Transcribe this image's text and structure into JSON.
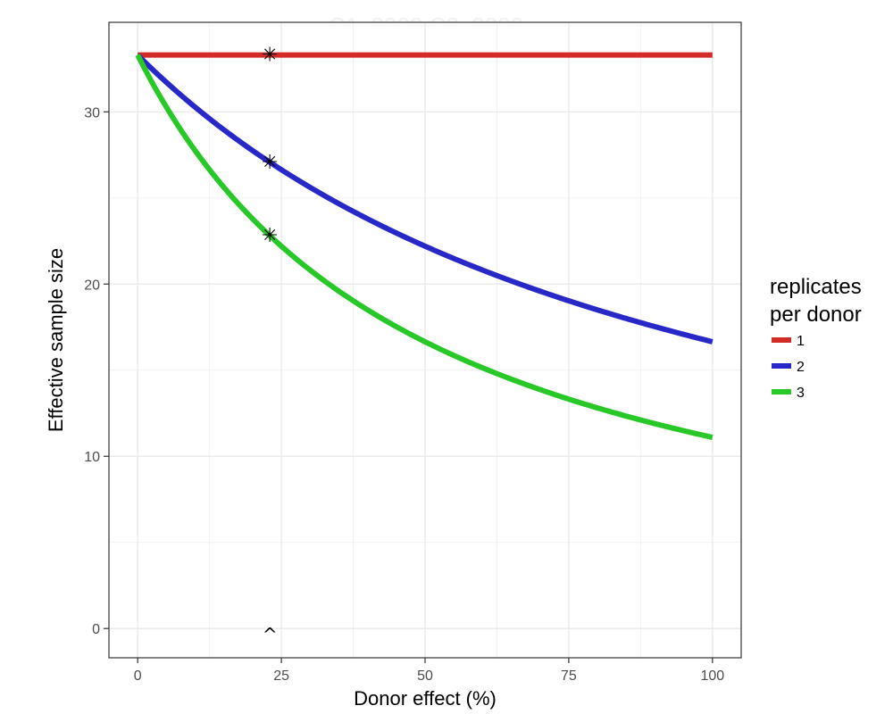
{
  "chart_data": {
    "type": "line",
    "title": "C1: 3000  C2: 3000",
    "title_color": "#f2f2f2",
    "xlabel": "Donor effect (%)",
    "ylabel": "Effective sample size",
    "xlim": [
      -5,
      105
    ],
    "ylim": [
      -1.7,
      35.2
    ],
    "x_ticks": [
      0,
      25,
      50,
      75,
      100
    ],
    "x_tick_labels": [
      "0",
      "25",
      "50",
      "75",
      "100"
    ],
    "y_ticks": [
      0,
      10,
      20,
      30
    ],
    "y_tick_labels": [
      "0",
      "10",
      "20",
      "30"
    ],
    "grid": true,
    "legend": {
      "title_lines": [
        "replicates",
        "per donor"
      ],
      "placement": "right"
    },
    "model": {
      "n_samples": 33.3,
      "formula": "y = N / (1 + (r - 1) * x / 100)"
    },
    "series": [
      {
        "name": "1",
        "replicates": 1,
        "color": "#d22a26"
      },
      {
        "name": "2",
        "replicates": 2,
        "color": "#2828c8"
      },
      {
        "name": "3",
        "replicates": 3,
        "color": "#28c828"
      }
    ],
    "annotations": {
      "x": 23,
      "star_symbol": "✳",
      "caret_symbol": "^",
      "caret_y": 0
    }
  }
}
